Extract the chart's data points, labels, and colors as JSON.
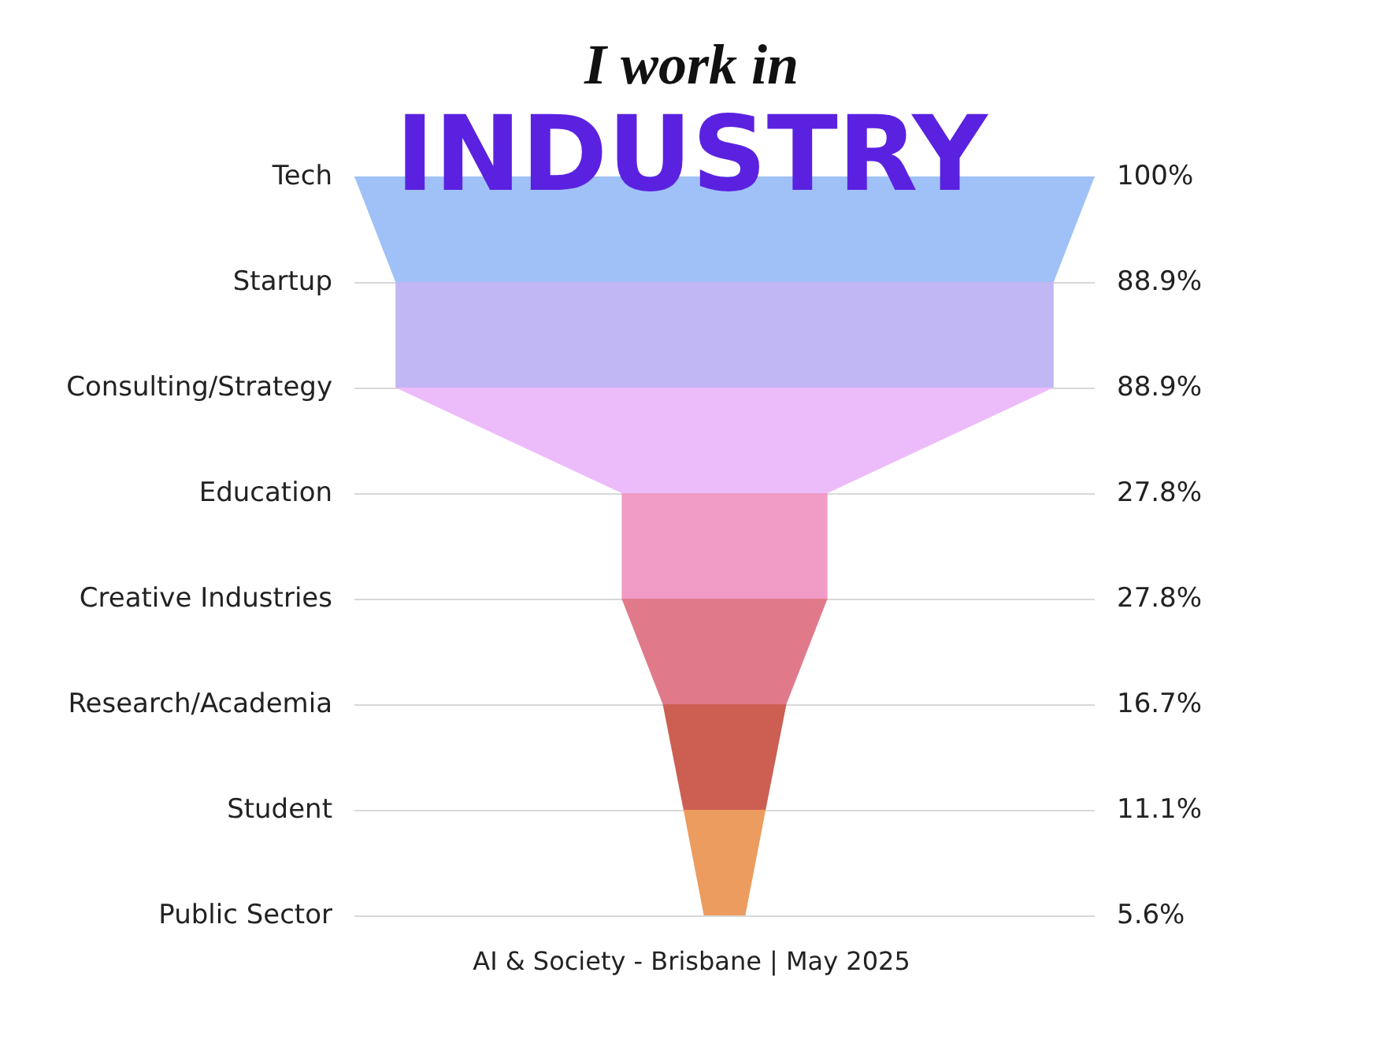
{
  "chart_data": {
    "type": "other",
    "title": "I work in",
    "subtitle": "INDUSTRY",
    "categories": [
      "Tech",
      "Startup",
      "Consulting/Strategy",
      "Education",
      "Creative Industries",
      "Research/Academia",
      "Student",
      "Public Sector"
    ],
    "values": [
      100,
      88.9,
      88.9,
      27.8,
      27.8,
      16.7,
      11.1,
      5.6
    ],
    "value_labels": [
      "100%",
      "88.9%",
      "88.9%",
      "27.8%",
      "27.8%",
      "16.7%",
      "11.1%",
      "5.6%"
    ],
    "colors": [
      "#9fc1f8",
      "#c0b7f4",
      "#ecbcfa",
      "#f09cc6",
      "#e07a8a",
      "#cc5f52",
      "#ec9c5e",
      "#ec9c5e"
    ],
    "annotations": [
      "AI & Society - Brisbane | May 2025"
    ]
  }
}
